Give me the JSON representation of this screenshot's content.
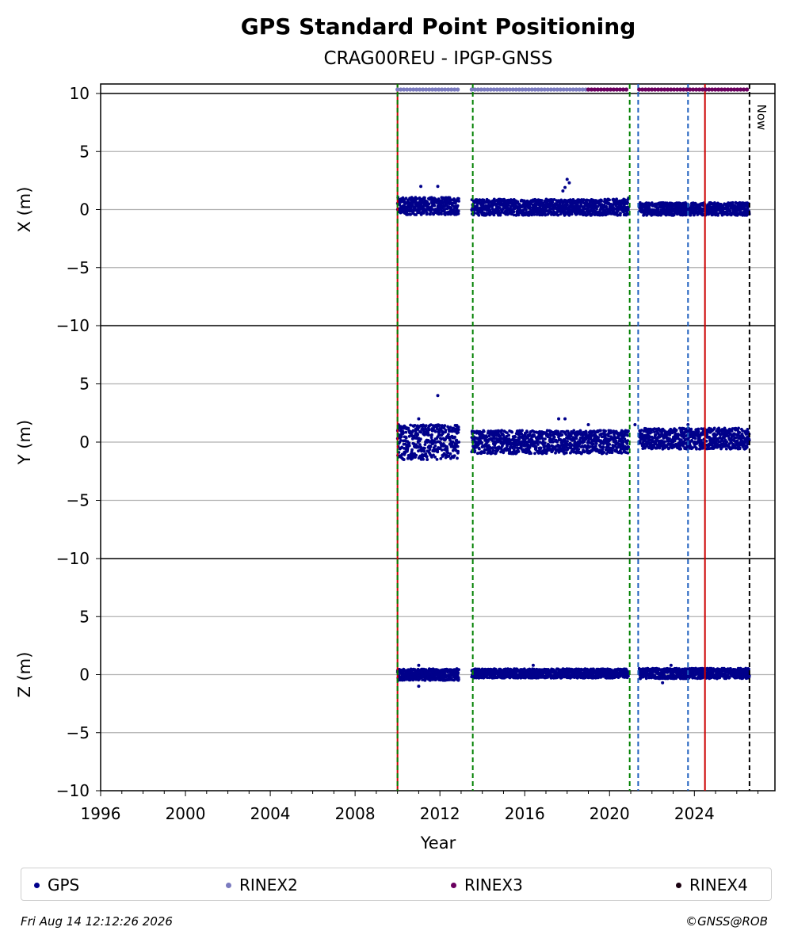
{
  "chart_data": {
    "type": "scatter",
    "title": "GPS Standard Point Positioning",
    "subtitle": "CRAG00REU - IPGP-GNSS",
    "xlabel": "Year",
    "xlim": [
      1996,
      2027.8
    ],
    "x_ticks": [
      "1996",
      "2000",
      "2004",
      "2008",
      "2012",
      "2016",
      "2020",
      "2024"
    ],
    "panels": [
      {
        "ylabel": "X (m)",
        "ylim": [
          -10,
          10
        ],
        "y_ticks": [
          "10",
          "5",
          "0",
          "−5",
          "−10"
        ],
        "series": {
          "name": "GPS",
          "segments": [
            {
              "x_start": 2010.0,
              "x_end": 2012.9,
              "center": 0.3,
              "spread": 0.75
            },
            {
              "x_start": 2013.5,
              "x_end": 2020.9,
              "center": 0.2,
              "spread": 0.7
            },
            {
              "x_start": 2021.4,
              "x_end": 2026.6,
              "center": 0.05,
              "spread": 0.55
            }
          ],
          "outliers": [
            {
              "x": 2011.1,
              "y": 2.0
            },
            {
              "x": 2011.9,
              "y": 2.0
            },
            {
              "x": 2017.9,
              "y": 1.9
            },
            {
              "x": 2018.0,
              "y": 2.6
            },
            {
              "x": 2018.1,
              "y": 2.3
            },
            {
              "x": 2017.8,
              "y": 1.6
            },
            {
              "x": 2020.9,
              "y": 1.0
            }
          ]
        }
      },
      {
        "ylabel": "Y (m)",
        "ylim": [
          -10,
          10
        ],
        "y_ticks": [
          "",
          "5",
          "0",
          "−5",
          "−10"
        ],
        "series": {
          "name": "GPS",
          "segments": [
            {
              "x_start": 2010.0,
              "x_end": 2012.9,
              "center": 0.0,
              "spread": 1.5
            },
            {
              "x_start": 2013.5,
              "x_end": 2020.9,
              "center": 0.0,
              "spread": 1.0
            },
            {
              "x_start": 2021.4,
              "x_end": 2026.6,
              "center": 0.3,
              "spread": 0.9
            }
          ],
          "outliers": [
            {
              "x": 2011.9,
              "y": 4.0
            },
            {
              "x": 2011.0,
              "y": 2.0
            },
            {
              "x": 2017.6,
              "y": 2.0
            },
            {
              "x": 2017.9,
              "y": 2.0
            },
            {
              "x": 2019.0,
              "y": 1.5
            },
            {
              "x": 2021.2,
              "y": 1.5
            },
            {
              "x": 2023.7,
              "y": 1.5
            },
            {
              "x": 2010.3,
              "y": -1.5
            },
            {
              "x": 2011.4,
              "y": -1.5
            }
          ]
        }
      },
      {
        "ylabel": "Z (m)",
        "ylim": [
          -10,
          10
        ],
        "y_ticks": [
          "",
          "5",
          "0",
          "−5",
          "−10"
        ],
        "series": {
          "name": "GPS",
          "segments": [
            {
              "x_start": 2010.0,
              "x_end": 2012.9,
              "center": 0.0,
              "spread": 0.5
            },
            {
              "x_start": 2013.5,
              "x_end": 2020.9,
              "center": 0.1,
              "spread": 0.4
            },
            {
              "x_start": 2021.4,
              "x_end": 2026.6,
              "center": 0.1,
              "spread": 0.45
            }
          ],
          "outliers": [
            {
              "x": 2011.0,
              "y": 0.8
            },
            {
              "x": 2011.0,
              "y": -1.0
            },
            {
              "x": 2016.4,
              "y": 0.8
            },
            {
              "x": 2022.5,
              "y": -0.7
            },
            {
              "x": 2022.9,
              "y": 0.8
            }
          ]
        }
      }
    ],
    "rinex_bars": [
      {
        "name": "RINEX2",
        "color": "#7b7bbf",
        "x_start": 2010.0,
        "x_end": 2012.9
      },
      {
        "name": "RINEX2",
        "color": "#7b7bbf",
        "x_start": 2013.5,
        "x_end": 2019.0
      },
      {
        "name": "RINEX3",
        "color": "#6a005f",
        "x_start": 2019.0,
        "x_end": 2020.9
      },
      {
        "name": "RINEX3",
        "color": "#6a005f",
        "x_start": 2021.4,
        "x_end": 2026.6
      }
    ],
    "event_lines": [
      {
        "x": 2010.0,
        "color": "#cc0000",
        "style": "solid"
      },
      {
        "x": 2010.0,
        "color": "#008000",
        "style": "dashed"
      },
      {
        "x": 2013.55,
        "color": "#008000",
        "style": "dashed"
      },
      {
        "x": 2020.95,
        "color": "#008000",
        "style": "dashed"
      },
      {
        "x": 2021.35,
        "color": "#1f5fbf",
        "style": "dashed"
      },
      {
        "x": 2023.7,
        "color": "#1f5fbf",
        "style": "dashed"
      },
      {
        "x": 2024.5,
        "color": "#cc0000",
        "style": "solid"
      },
      {
        "x": 2026.6,
        "color": "#000000",
        "style": "dashed"
      }
    ],
    "now_label": "Now",
    "grid": true,
    "colors": {
      "gps": "#00008b",
      "rinex2": "#7b7bbf",
      "rinex3": "#6a005f",
      "rinex4": "#1a0010"
    }
  },
  "legend": {
    "items": [
      {
        "label": "GPS",
        "color": "#00008b"
      },
      {
        "label": "RINEX2",
        "color": "#7b7bbf"
      },
      {
        "label": "RINEX3",
        "color": "#6a005f"
      },
      {
        "label": "RINEX4",
        "color": "#1a0010"
      }
    ]
  },
  "footer": {
    "timestamp": "Fri Aug 14 12:12:26 2026",
    "credit": "©GNSS@ROB"
  }
}
